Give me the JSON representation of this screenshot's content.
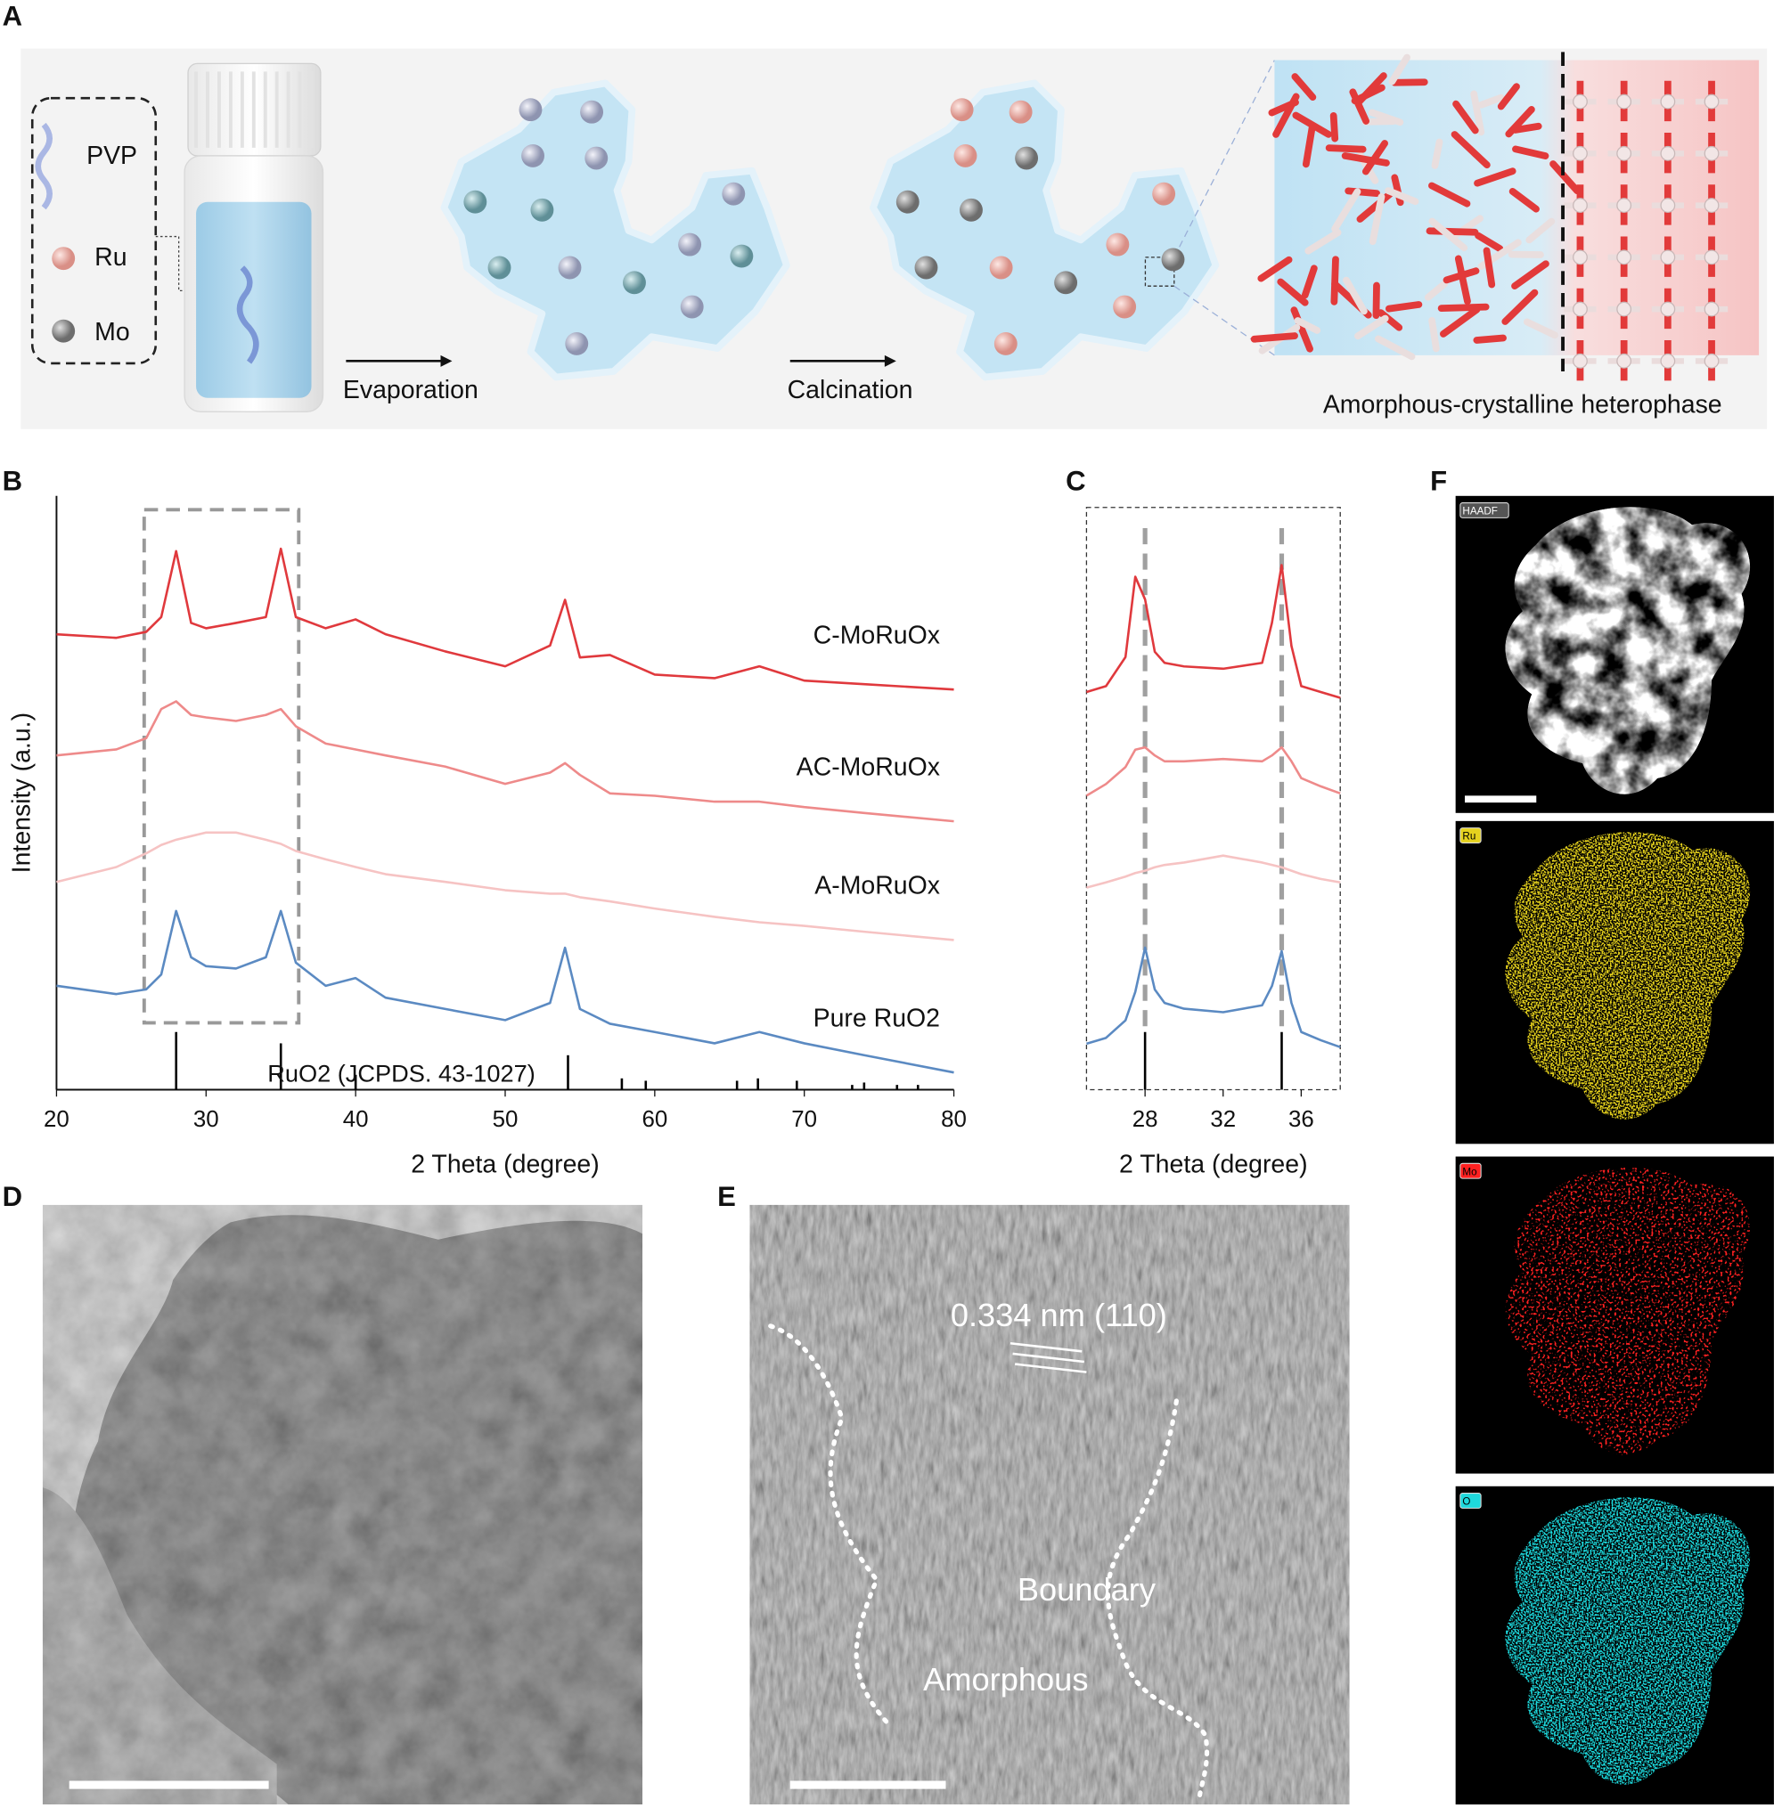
{
  "panel_labels": [
    "A",
    "B",
    "C",
    "D",
    "E",
    "F"
  ],
  "scheme": {
    "legend": [
      "PVP",
      "Ru",
      "Mo"
    ],
    "steps": [
      "Evaporation",
      "Calcination"
    ],
    "caption": "Amorphous-crystalline heterophase"
  },
  "chart_data": [
    {
      "type": "line",
      "frame": "axes",
      "x_label": "2 Theta (degree)",
      "y_label": "Intensity (a.u.)",
      "xlim": [
        20,
        80
      ],
      "xticks": [
        20,
        30,
        40,
        50,
        60,
        70,
        80
      ],
      "ylim": [
        0,
        100
      ],
      "x": [
        20,
        24,
        26,
        27,
        28,
        29,
        30,
        32,
        34,
        35,
        36,
        38,
        40,
        42,
        46,
        50,
        53,
        54,
        55,
        57,
        60,
        64,
        67,
        70,
        74,
        80
      ],
      "series": [
        {
          "name": "C-MoRuOx",
          "color": "#e0393d",
          "values": [
            76.7,
            76.1,
            77.1,
            79.6,
            90.7,
            78.6,
            77.7,
            78.6,
            79.6,
            91.1,
            79.6,
            77.7,
            79.2,
            76.7,
            73.8,
            71.3,
            74.8,
            82.5,
            72.8,
            73.2,
            69.9,
            69.3,
            71.3,
            68.9,
            68.3,
            67.4
          ]
        },
        {
          "name": "AC-MoRuOx",
          "color": "#ee8a8a",
          "values": [
            56.3,
            57.3,
            59.2,
            64.1,
            65.4,
            63.1,
            62.7,
            62.1,
            63.1,
            64.1,
            61.2,
            58.3,
            57.3,
            56.3,
            54.4,
            51.5,
            53.4,
            55.0,
            53.0,
            49.9,
            49.5,
            48.5,
            48.5,
            47.6,
            46.6,
            45.2
          ]
        },
        {
          "name": "A-MoRuOx",
          "color": "#f6c3c3",
          "values": [
            35.0,
            37.5,
            39.8,
            41.2,
            42.1,
            42.7,
            43.3,
            43.3,
            42.1,
            41.4,
            40.2,
            38.8,
            37.5,
            36.3,
            35.0,
            33.6,
            33.0,
            33.0,
            32.4,
            31.7,
            30.5,
            29.1,
            28.2,
            27.6,
            26.6,
            25.2
          ]
        },
        {
          "name": "Pure RuO2",
          "color": "#5b8ac2",
          "values": [
            17.5,
            16.1,
            16.9,
            19.4,
            30.1,
            22.3,
            20.8,
            20.4,
            22.3,
            30.1,
            21.4,
            17.5,
            18.8,
            15.5,
            13.6,
            11.7,
            14.6,
            23.9,
            13.6,
            11.1,
            9.7,
            7.8,
            9.7,
            7.8,
            5.8,
            2.9
          ]
        }
      ],
      "reference": {
        "name": "RuO2 (JCPDS. 43-1027)",
        "color": "#000000",
        "x": [
          28.0,
          35.0,
          40.0,
          54.2,
          57.8,
          59.4,
          65.5,
          66.9,
          69.5,
          73.2,
          74.0,
          76.2,
          77.6
        ],
        "values": [
          9.7,
          7.8,
          2.5,
          5.8,
          1.9,
          1.5,
          1.5,
          1.9,
          1.5,
          0.8,
          1.2,
          0.8,
          0.8
        ]
      }
    },
    {
      "type": "line",
      "frame": "dashed",
      "guide_lines": true,
      "x_label": "2 Theta (degree)",
      "xlim": [
        25,
        38
      ],
      "xticks": [
        28,
        32,
        36
      ],
      "ylim": [
        0,
        100
      ],
      "x": [
        25,
        26,
        27,
        27.5,
        28,
        28.5,
        29,
        30,
        32,
        34,
        34.5,
        35,
        35.5,
        36,
        37,
        38
      ],
      "series": [
        {
          "color": "#e0393d",
          "values": [
            68.3,
            69.3,
            74.3,
            88.1,
            84.2,
            75.2,
            73.3,
            72.7,
            72.3,
            73.3,
            80.2,
            90.1,
            76.2,
            69.3,
            68.3,
            67.3
          ]
        },
        {
          "color": "#ee8a8a",
          "values": [
            50.5,
            52.5,
            55.4,
            58.4,
            58.8,
            57.4,
            56.4,
            56.4,
            56.8,
            56.4,
            57.4,
            58.8,
            56.4,
            53.5,
            52.1,
            50.9
          ]
        },
        {
          "color": "#f6c3c3",
          "values": [
            34.7,
            35.6,
            36.6,
            37.2,
            37.6,
            38.2,
            38.6,
            39.0,
            40.2,
            39.0,
            38.6,
            38.2,
            37.6,
            37.0,
            36.2,
            35.6
          ]
        },
        {
          "color": "#5b8ac2",
          "values": [
            7.9,
            8.9,
            11.9,
            16.8,
            24.4,
            17.2,
            14.9,
            13.9,
            13.3,
            14.5,
            17.8,
            23.8,
            14.9,
            9.9,
            8.5,
            7.3
          ]
        }
      ],
      "reference": {
        "color": "#000000",
        "x": [
          28.0,
          35.0
        ],
        "values": [
          9.9,
          9.9
        ]
      }
    }
  ],
  "hrtem": {
    "annotations": [
      "0.334 nm (110)",
      "Boundary",
      "Amorphous"
    ]
  },
  "eds_maps": {
    "labels": [
      "HAADF",
      "Ru",
      "Mo",
      "O"
    ],
    "colors": [
      "#ffffff",
      "#e6d21e",
      "#ff2020",
      "#1ed8dc"
    ]
  }
}
